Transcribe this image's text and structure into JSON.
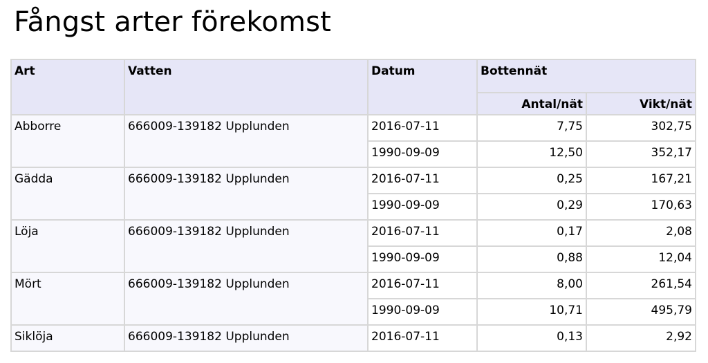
{
  "title": "Fångst arter förekomst",
  "columns": {
    "art": "Art",
    "vatten": "Vatten",
    "datum": "Datum",
    "group": "Bottennät",
    "antal": "Antal/nät",
    "vikt": "Vikt/nät"
  },
  "rows": [
    {
      "art": "Abborre",
      "vatten": "666009-139182 Upplunden",
      "entries": [
        {
          "datum": "2016-07-11",
          "antal": "7,75",
          "vikt": "302,75"
        },
        {
          "datum": "1990-09-09",
          "antal": "12,50",
          "vikt": "352,17"
        }
      ]
    },
    {
      "art": "Gädda",
      "vatten": "666009-139182 Upplunden",
      "entries": [
        {
          "datum": "2016-07-11",
          "antal": "0,25",
          "vikt": "167,21"
        },
        {
          "datum": "1990-09-09",
          "antal": "0,29",
          "vikt": "170,63"
        }
      ]
    },
    {
      "art": "Löja",
      "vatten": "666009-139182 Upplunden",
      "entries": [
        {
          "datum": "2016-07-11",
          "antal": "0,17",
          "vikt": "2,08"
        },
        {
          "datum": "1990-09-09",
          "antal": "0,88",
          "vikt": "12,04"
        }
      ]
    },
    {
      "art": "Mört",
      "vatten": "666009-139182 Upplunden",
      "entries": [
        {
          "datum": "2016-07-11",
          "antal": "8,00",
          "vikt": "261,54"
        },
        {
          "datum": "1990-09-09",
          "antal": "10,71",
          "vikt": "495,79"
        }
      ]
    },
    {
      "art": "Siklöja",
      "vatten": "666009-139182 Upplunden",
      "entries": [
        {
          "datum": "2016-07-11",
          "antal": "0,13",
          "vikt": "2,92"
        }
      ]
    }
  ]
}
